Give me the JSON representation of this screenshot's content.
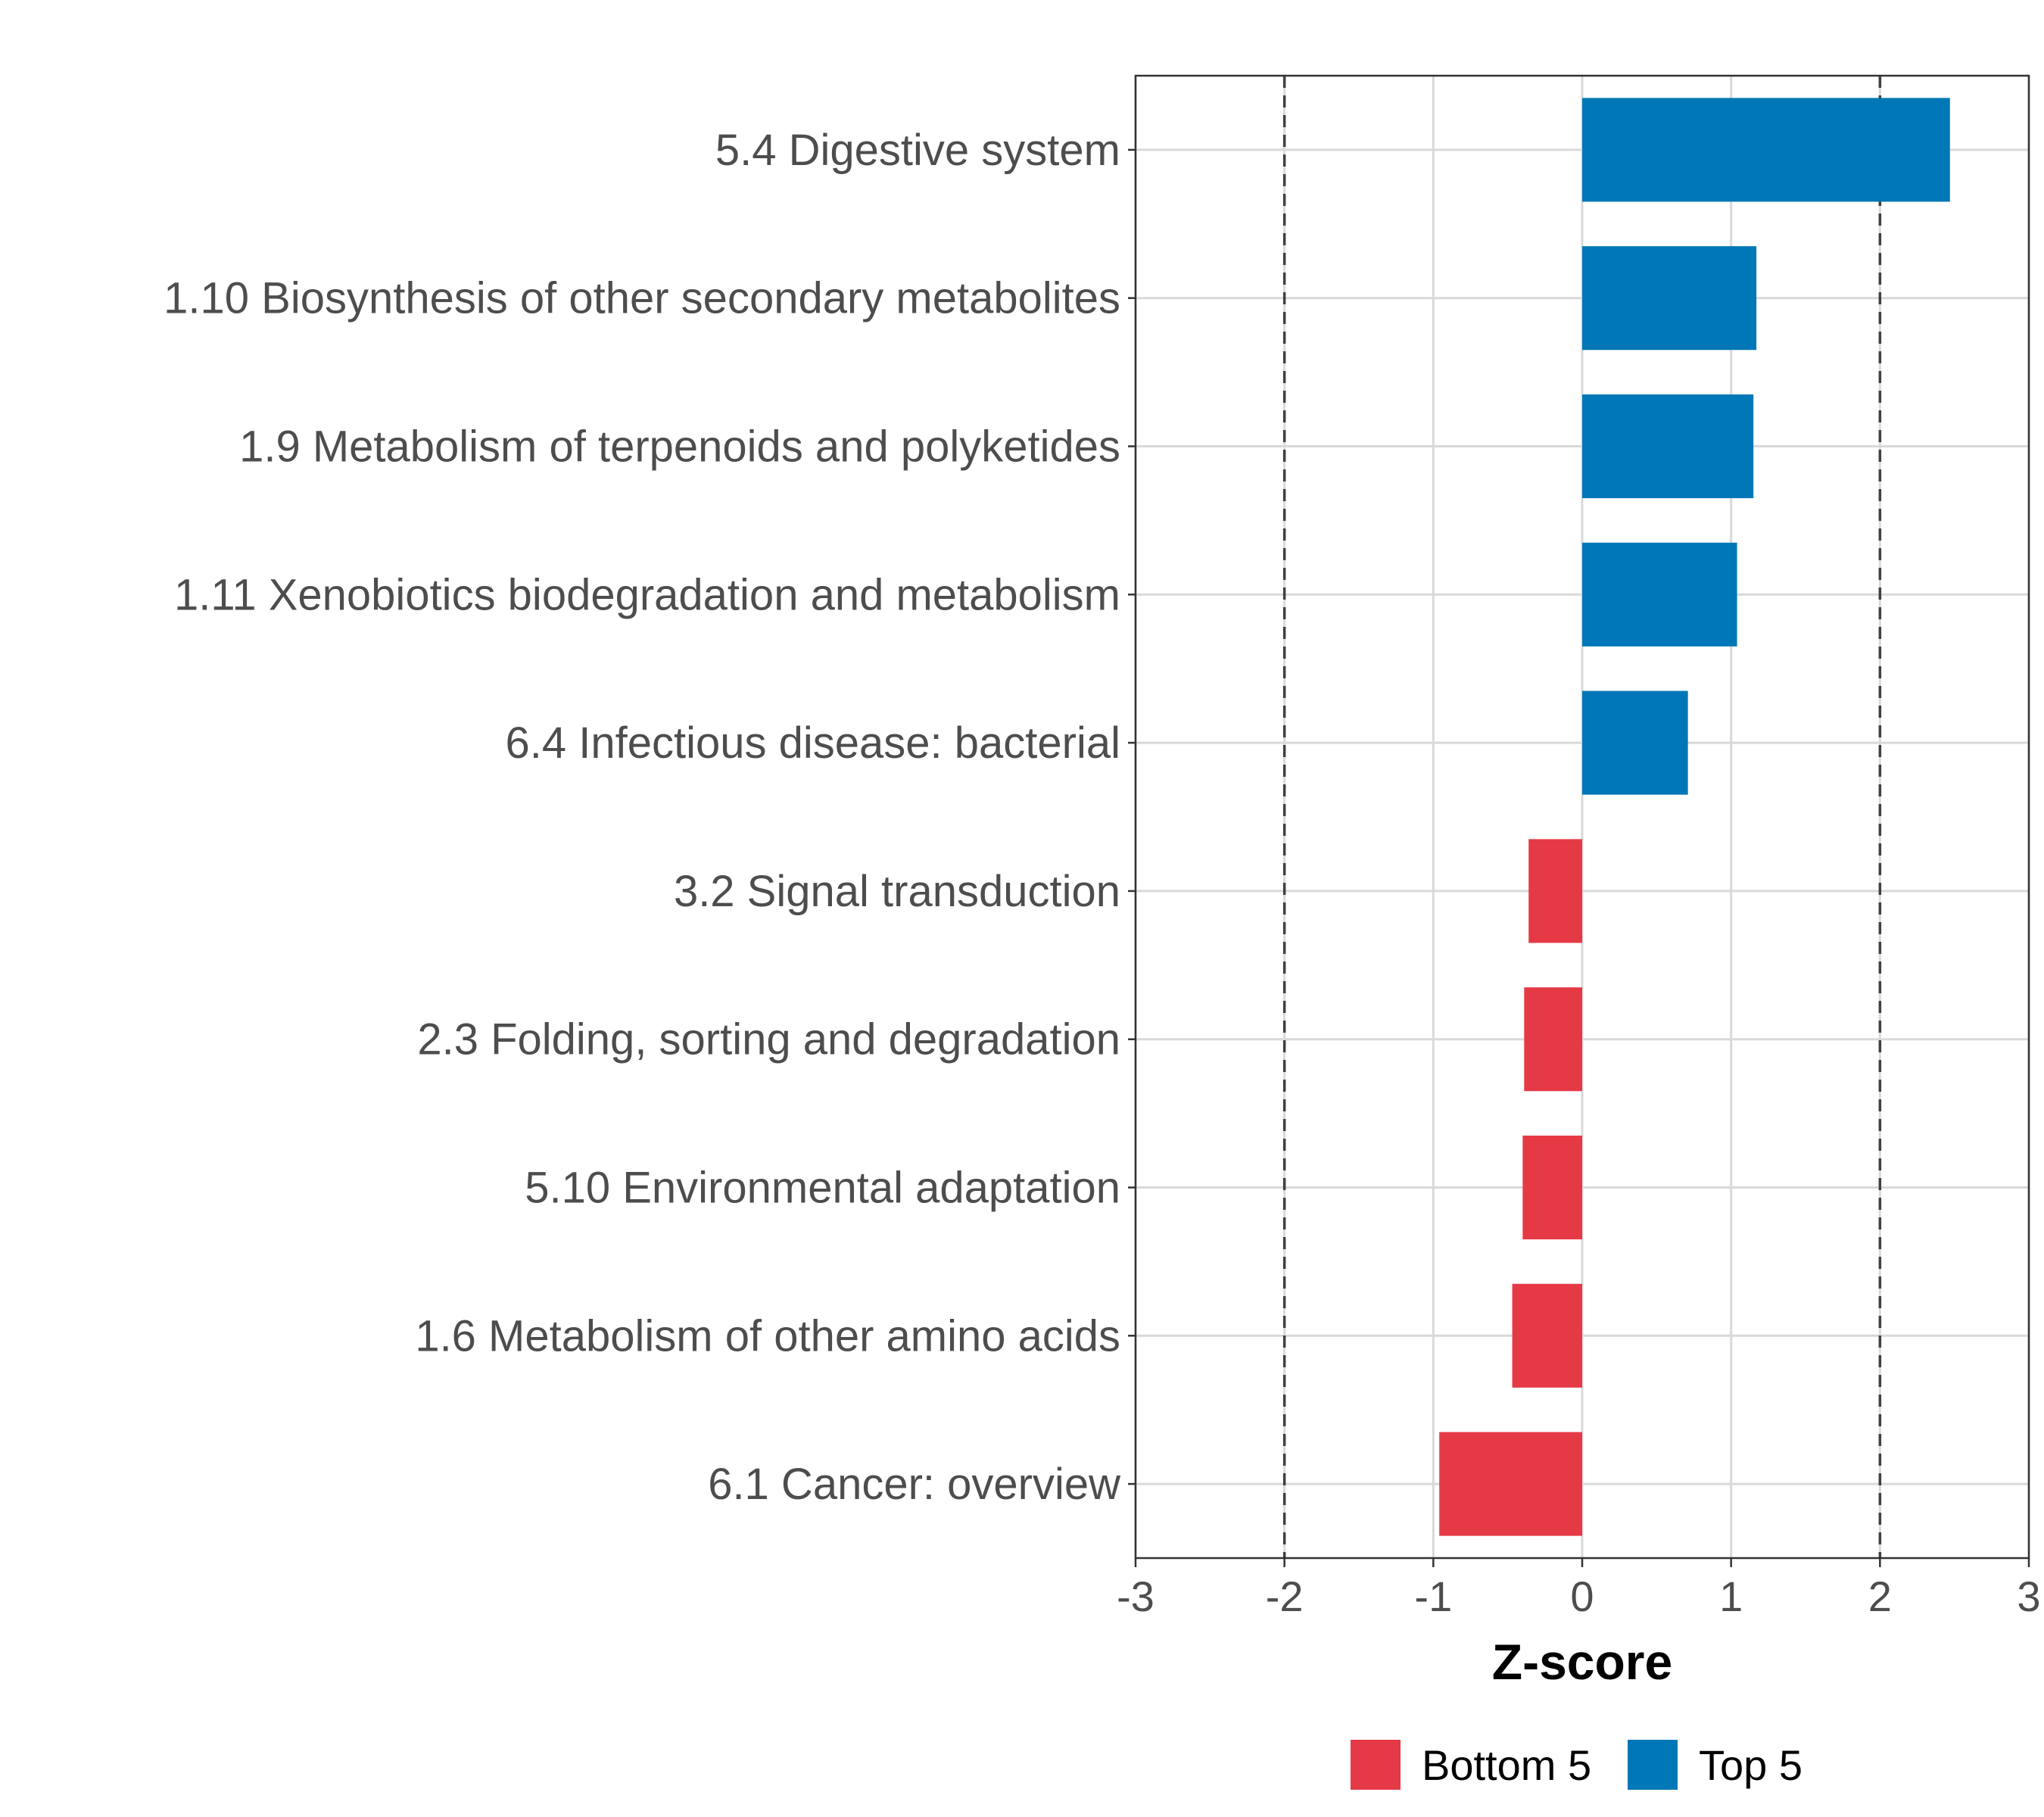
{
  "chart_data": {
    "type": "bar",
    "orientation": "horizontal",
    "title": "",
    "xlabel": "Z-score",
    "ylabel": "",
    "xlim": [
      -3,
      3
    ],
    "xticks": [
      -3,
      -2,
      -1,
      0,
      1,
      2,
      3
    ],
    "reference_lines": [
      -2,
      2
    ],
    "grid": true,
    "legend_position": "bottom",
    "categories": [
      "5.4 Digestive system",
      "1.10 Biosynthesis of other secondary metabolites",
      "1.9 Metabolism of terpenoids and polyketides",
      "1.11 Xenobiotics biodegradation and metabolism",
      "6.4 Infectious disease: bacterial",
      "3.2 Signal transduction",
      "2.3 Folding, sorting and degradation",
      "5.10 Environmental adaptation",
      "1.6 Metabolism of other amino acids",
      "6.1 Cancer: overview"
    ],
    "values": [
      2.47,
      1.17,
      1.15,
      1.04,
      0.71,
      -0.36,
      -0.39,
      -0.4,
      -0.47,
      -0.96
    ],
    "groups": [
      "Top 5",
      "Top 5",
      "Top 5",
      "Top 5",
      "Top 5",
      "Bottom 5",
      "Bottom 5",
      "Bottom 5",
      "Bottom 5",
      "Bottom 5"
    ],
    "legend": [
      {
        "name": "Bottom 5",
        "color": "#e63946"
      },
      {
        "name": "Top 5",
        "color": "#0077b6"
      }
    ]
  }
}
